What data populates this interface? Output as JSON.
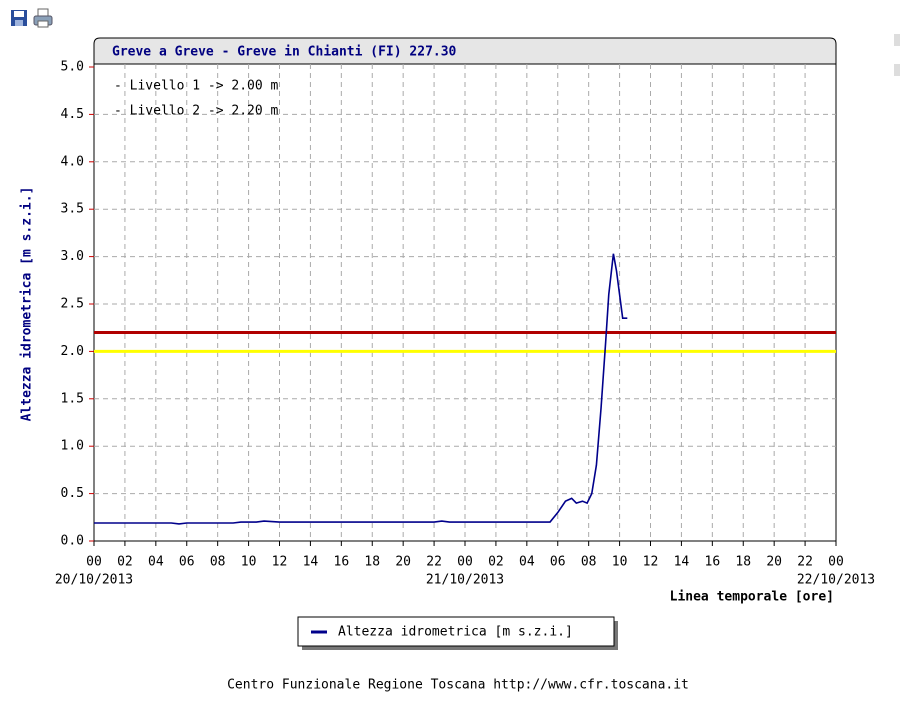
{
  "chart_data": {
    "type": "line",
    "title": "Greve a Greve - Greve in Chianti (FI) 227.30",
    "y_label": "Altezza idrometrica [m s.z.i.]",
    "x_label": "Linea temporale [ore]",
    "footer": "Centro Funzionale Regione Toscana http://www.cfr.toscana.it",
    "x": [
      0,
      5,
      5.5,
      6,
      9,
      9.5,
      10.5,
      11,
      12,
      22,
      22.5,
      23,
      29.5,
      30,
      30.5,
      30.9,
      31.2,
      31.6,
      31.9,
      32.2,
      32.5,
      32.8,
      33.1,
      33.3,
      33.6,
      33.8,
      34.0,
      34.2,
      34.5
    ],
    "series": [
      {
        "name": "Altezza idrometrica [m s.z.i.]",
        "color": "#00008b",
        "values": [
          0.19,
          0.19,
          0.18,
          0.19,
          0.19,
          0.2,
          0.2,
          0.21,
          0.2,
          0.2,
          0.21,
          0.2,
          0.2,
          0.3,
          0.42,
          0.45,
          0.4,
          0.42,
          0.4,
          0.5,
          0.8,
          1.4,
          2.1,
          2.6,
          3.03,
          2.85,
          2.6,
          2.35,
          2.35
        ]
      }
    ],
    "thresholds": [
      {
        "label": "- Livello 1 -> 2.00 m",
        "value": 2.0,
        "color": "#ffff00"
      },
      {
        "label": "- Livello 2 -> 2.20 m",
        "value": 2.2,
        "color": "#b00000"
      }
    ],
    "xlim": [
      0,
      48
    ],
    "xticks": [
      {
        "value": 0,
        "label": "00"
      },
      {
        "value": 2,
        "label": "02"
      },
      {
        "value": 4,
        "label": "04"
      },
      {
        "value": 6,
        "label": "06"
      },
      {
        "value": 8,
        "label": "08"
      },
      {
        "value": 10,
        "label": "10"
      },
      {
        "value": 12,
        "label": "12"
      },
      {
        "value": 14,
        "label": "14"
      },
      {
        "value": 16,
        "label": "16"
      },
      {
        "value": 18,
        "label": "18"
      },
      {
        "value": 20,
        "label": "20"
      },
      {
        "value": 22,
        "label": "22"
      },
      {
        "value": 24,
        "label": "00"
      },
      {
        "value": 26,
        "label": "02"
      },
      {
        "value": 28,
        "label": "04"
      },
      {
        "value": 30,
        "label": "06"
      },
      {
        "value": 32,
        "label": "08"
      },
      {
        "value": 34,
        "label": "10"
      },
      {
        "value": 36,
        "label": "12"
      },
      {
        "value": 38,
        "label": "14"
      },
      {
        "value": 40,
        "label": "16"
      },
      {
        "value": 42,
        "label": "18"
      },
      {
        "value": 44,
        "label": "20"
      },
      {
        "value": 46,
        "label": "22"
      },
      {
        "value": 48,
        "label": "00"
      }
    ],
    "x_date_labels": [
      {
        "value": 0,
        "label": "20/10/2013"
      },
      {
        "value": 24,
        "label": "21/10/2013"
      },
      {
        "value": 48,
        "label": "22/10/2013"
      }
    ],
    "ylim": [
      0,
      5
    ],
    "yticks": [
      {
        "value": 0,
        "label": "0.0"
      },
      0.5,
      {
        "value": 1,
        "label": "1.0"
      },
      1.5,
      {
        "value": 2,
        "label": "2.0"
      },
      2.5,
      {
        "value": 3,
        "label": "3.0"
      },
      3.5,
      {
        "value": 4,
        "label": "4.0"
      },
      4.5,
      {
        "value": 5,
        "label": "5.0"
      }
    ],
    "grid": true
  }
}
